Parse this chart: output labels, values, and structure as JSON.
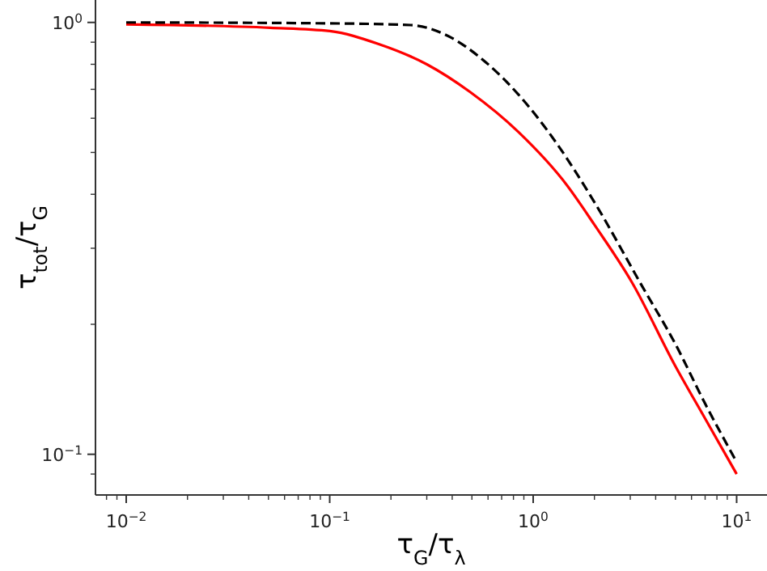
{
  "chart_data": {
    "type": "line",
    "log": "xy",
    "xlabel": "τ$_{G}$/τ$_{λ}$",
    "ylabel": "τ$_{tot}$/τ$_{G}$",
    "xlim": [
      0.00706,
      14.1
    ],
    "ylim": [
      0.0805,
      1.127
    ],
    "xticks": [
      {
        "value": 0.01,
        "label": "10$^{−2}$"
      },
      {
        "value": 0.1,
        "label": "10$^{−1}$"
      },
      {
        "value": 1,
        "label": "10$^{0}$"
      },
      {
        "value": 10,
        "label": "10$^{1}$"
      },
      {
        "value": 0.008,
        "label": null
      },
      {
        "value": 0.009,
        "label": null
      },
      {
        "value": 0.02,
        "label": null
      },
      {
        "value": 0.03,
        "label": null
      },
      {
        "value": 0.04,
        "label": null
      },
      {
        "value": 0.05,
        "label": null
      },
      {
        "value": 0.06,
        "label": null
      },
      {
        "value": 0.07,
        "label": null
      },
      {
        "value": 0.08,
        "label": null
      },
      {
        "value": 0.09,
        "label": null
      },
      {
        "value": 0.2,
        "label": null
      },
      {
        "value": 0.3,
        "label": null
      },
      {
        "value": 0.4,
        "label": null
      },
      {
        "value": 0.5,
        "label": null
      },
      {
        "value": 0.6,
        "label": null
      },
      {
        "value": 0.7,
        "label": null
      },
      {
        "value": 0.8,
        "label": null
      },
      {
        "value": 0.9,
        "label": null
      },
      {
        "value": 2,
        "label": null
      },
      {
        "value": 3,
        "label": null
      },
      {
        "value": 4,
        "label": null
      },
      {
        "value": 5,
        "label": null
      },
      {
        "value": 6,
        "label": null
      },
      {
        "value": 7,
        "label": null
      },
      {
        "value": 8,
        "label": null
      },
      {
        "value": 9,
        "label": null
      }
    ],
    "yticks": [
      {
        "value": 0.1,
        "label": "10$^{−1}$"
      },
      {
        "value": 1,
        "label": "10$^{0}$"
      },
      {
        "value": 0.09,
        "label": null
      },
      {
        "value": 0.2,
        "label": null
      },
      {
        "value": 0.3,
        "label": null
      },
      {
        "value": 0.4,
        "label": null
      },
      {
        "value": 0.5,
        "label": null
      },
      {
        "value": 0.6,
        "label": null
      },
      {
        "value": 0.7,
        "label": null
      },
      {
        "value": 0.8,
        "label": null
      },
      {
        "value": 0.9,
        "label": null
      }
    ],
    "series": [
      {
        "color": "#ff0000",
        "line_style": "solid",
        "x": [
          0.01,
          0.051,
          0.1,
          0.173,
          0.3,
          0.49,
          0.848,
          1.47,
          2,
          3.06,
          5,
          7,
          10
        ],
        "values": [
          0.99,
          0.972,
          0.955,
          0.892,
          0.8,
          0.69,
          0.557,
          0.419,
          0.34,
          0.25,
          0.16,
          0.121,
          0.09
        ]
      },
      {
        "color": "#000000",
        "line_style": "dashed",
        "x": [
          0.01,
          0.1,
          0.25,
          0.38,
          0.588,
          0.848,
          1.3,
          1.99,
          3.45,
          5,
          7,
          10
        ],
        "values": [
          1.0,
          0.995,
          0.986,
          0.931,
          0.807,
          0.68,
          0.526,
          0.385,
          0.244,
          0.18,
          0.131,
          0.096
        ]
      }
    ]
  }
}
